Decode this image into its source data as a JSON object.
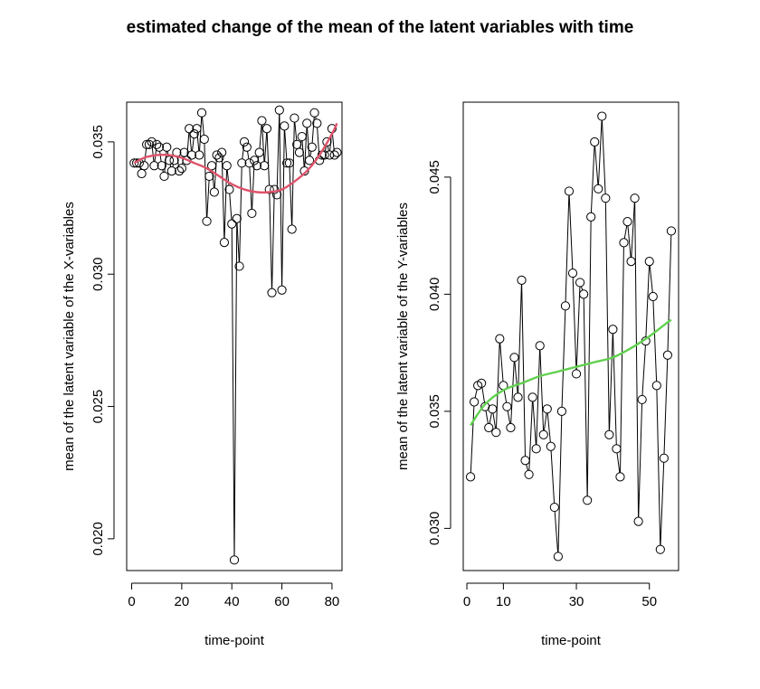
{
  "title": "estimated change of the mean of the latent variables with time",
  "chart_data": [
    {
      "type": "line",
      "panel": "left",
      "xlabel": "time-point",
      "ylabel": "mean of the latent variable of the X-variables",
      "xlim": [
        -2,
        84
      ],
      "ylim": [
        0.0188,
        0.0365
      ],
      "xticks": [
        0,
        20,
        40,
        60,
        80
      ],
      "yticks": [
        0.02,
        0.025,
        0.03,
        0.035
      ],
      "ytick_labels": [
        "0.020",
        "0.025",
        "0.030",
        "0.035"
      ],
      "markers": "open-circle",
      "series": [
        {
          "role": "observed",
          "color": "#000000",
          "x": [
            1,
            2,
            3,
            4,
            5,
            6,
            7,
            8,
            9,
            10,
            11,
            12,
            13,
            14,
            15,
            16,
            17,
            18,
            19,
            20,
            21,
            22,
            23,
            24,
            25,
            26,
            27,
            28,
            29,
            30,
            31,
            32,
            33,
            34,
            35,
            36,
            37,
            38,
            39,
            40,
            41,
            42,
            43,
            44,
            45,
            46,
            47,
            48,
            49,
            50,
            51,
            52,
            53,
            54,
            55,
            56,
            57,
            58,
            59,
            60,
            61,
            62,
            63,
            64,
            65,
            66,
            67,
            68,
            69,
            70,
            71,
            72,
            73,
            74,
            75,
            76,
            77,
            78,
            79,
            80,
            81,
            82
          ],
          "y": [
            0.0342,
            0.0342,
            0.0342,
            0.0338,
            0.0341,
            0.0349,
            0.0349,
            0.035,
            0.0341,
            0.0349,
            0.0348,
            0.0341,
            0.0337,
            0.0348,
            0.0343,
            0.0339,
            0.0343,
            0.0346,
            0.0339,
            0.034,
            0.0346,
            0.0343,
            0.0355,
            0.0345,
            0.0353,
            0.0355,
            0.0345,
            0.0361,
            0.0351,
            0.032,
            0.0337,
            0.0341,
            0.0331,
            0.0345,
            0.0344,
            0.0346,
            0.0312,
            0.0341,
            0.0332,
            0.0319,
            0.0192,
            0.0321,
            0.0303,
            0.0342,
            0.035,
            0.0348,
            0.0342,
            0.0323,
            0.0343,
            0.0341,
            0.0346,
            0.0358,
            0.0341,
            0.0355,
            0.0332,
            0.0293,
            0.0332,
            0.033,
            0.0362,
            0.0294,
            0.0356,
            0.0342,
            0.0342,
            0.0317,
            0.0359,
            0.0349,
            0.0346,
            0.0352,
            0.0339,
            0.0357,
            0.0343,
            0.0348,
            0.0361,
            0.0357,
            0.0343,
            0.0345,
            0.0345,
            0.035,
            0.0345,
            0.0355,
            0.0345,
            0.0346
          ]
        },
        {
          "role": "smooth",
          "color": "#df536b",
          "x": [
            1,
            5,
            10,
            15,
            20,
            25,
            30,
            35,
            40,
            45,
            50,
            55,
            60,
            65,
            70,
            75,
            80,
            82
          ],
          "y": [
            0.0342,
            0.0344,
            0.0345,
            0.0345,
            0.0344,
            0.0342,
            0.034,
            0.0337,
            0.0334,
            0.0332,
            0.0331,
            0.0331,
            0.0332,
            0.0335,
            0.0339,
            0.0345,
            0.0353,
            0.0357
          ]
        }
      ]
    },
    {
      "type": "line",
      "panel": "right",
      "xlabel": "time-point",
      "ylabel": "mean of the latent variable of the Y-variables",
      "xlim": [
        -1,
        58
      ],
      "ylim": [
        0.0282,
        0.0482
      ],
      "xticks": [
        0,
        10,
        30,
        50
      ],
      "yticks": [
        0.03,
        0.035,
        0.04,
        0.045
      ],
      "ytick_labels": [
        "0.030",
        "0.035",
        "0.040",
        "0.045"
      ],
      "markers": "open-circle",
      "series": [
        {
          "role": "observed",
          "color": "#000000",
          "x": [
            1,
            2,
            3,
            4,
            5,
            6,
            7,
            8,
            9,
            10,
            11,
            12,
            13,
            14,
            15,
            16,
            17,
            18,
            19,
            20,
            21,
            22,
            23,
            24,
            25,
            26,
            27,
            28,
            29,
            30,
            31,
            32,
            33,
            34,
            35,
            36,
            37,
            38,
            39,
            40,
            41,
            42,
            43,
            44,
            45,
            46,
            47,
            48,
            49,
            50,
            51,
            52,
            53,
            54,
            55,
            56
          ],
          "y": [
            0.0322,
            0.0354,
            0.0361,
            0.0362,
            0.0352,
            0.0343,
            0.0351,
            0.0341,
            0.0381,
            0.0361,
            0.0352,
            0.0343,
            0.0373,
            0.0356,
            0.0406,
            0.0329,
            0.0323,
            0.0356,
            0.0334,
            0.0378,
            0.034,
            0.0351,
            0.0335,
            0.0309,
            0.0288,
            0.035,
            0.0395,
            0.0444,
            0.0409,
            0.0366,
            0.0405,
            0.04,
            0.0312,
            0.0433,
            0.0465,
            0.0445,
            0.0476,
            0.0441,
            0.034,
            0.0385,
            0.0334,
            0.0322,
            0.0422,
            0.0431,
            0.0414,
            0.0441,
            0.0303,
            0.0355,
            0.038,
            0.0414,
            0.0399,
            0.0361,
            0.0291,
            0.033,
            0.0374,
            0.0427
          ]
        },
        {
          "role": "smooth",
          "color": "#61d04f",
          "x": [
            1,
            5,
            10,
            15,
            20,
            25,
            30,
            35,
            40,
            45,
            50,
            55,
            56
          ],
          "y": [
            0.0344,
            0.0353,
            0.0359,
            0.0362,
            0.0365,
            0.0367,
            0.0369,
            0.0371,
            0.0373,
            0.0377,
            0.0382,
            0.0388,
            0.0389
          ]
        }
      ]
    }
  ]
}
